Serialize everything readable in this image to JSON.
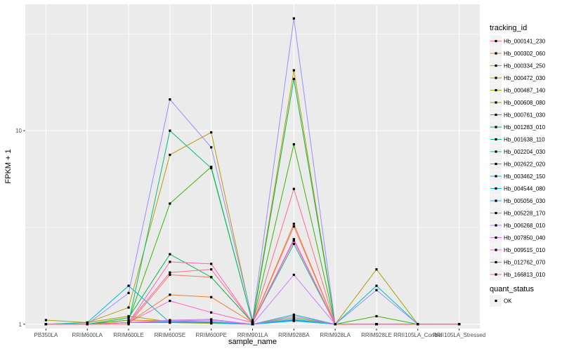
{
  "chart_data": {
    "type": "line",
    "title": "",
    "xlabel": "sample_name",
    "ylabel": "FPKM + 1",
    "y_scale": "log10",
    "ylim": [
      0.95,
      45
    ],
    "y_ticks": [
      {
        "value": 1,
        "label": "1"
      },
      {
        "value": 10,
        "label": "10"
      }
    ],
    "grid": true,
    "legend_position": "right",
    "categories": [
      "PB350LA",
      "RRIM600LA",
      "RRIM600LE",
      "RRIM600SE",
      "RRIM600PE",
      "RRIM901LA",
      "RRIM928BA",
      "RRIM928LA",
      "RRIM928LE",
      "RRII105LA_Control",
      "RRII105LA_Stressed"
    ],
    "legend_title": "tracking_id",
    "series": [
      {
        "name": "Hb_000141_230",
        "color": "#F8766D",
        "values": [
          1,
          1,
          1,
          1.8,
          1.75,
          1.02,
          3.2,
          1,
          1,
          1,
          1
        ]
      },
      {
        "name": "Hb_000302_060",
        "color": "#EA8331",
        "values": [
          1,
          1,
          1.02,
          1.42,
          1.38,
          1.02,
          3.3,
          1,
          1,
          1,
          1
        ]
      },
      {
        "name": "Hb_000334_250",
        "color": "#D89000",
        "values": [
          1,
          1,
          1.05,
          1.04,
          1.03,
          1,
          1.05,
          1,
          1,
          1,
          1
        ]
      },
      {
        "name": "Hb_000472_030",
        "color": "#C09B00",
        "values": [
          1,
          1.02,
          1.22,
          7.5,
          9.8,
          1.03,
          20.5,
          1,
          1,
          1,
          1
        ]
      },
      {
        "name": "Hb_000487_140",
        "color": "#A3A500",
        "values": [
          1.05,
          1.02,
          1.1,
          1.03,
          1.02,
          1,
          1.05,
          1,
          1.92,
          1,
          1
        ]
      },
      {
        "name": "Hb_000608_080",
        "color": "#7CAE00",
        "values": [
          1,
          1,
          1.02,
          1.02,
          1.01,
          1,
          1.08,
          1,
          1,
          1,
          1
        ]
      },
      {
        "name": "Hb_000761_030",
        "color": "#39B600",
        "values": [
          1,
          1,
          1.05,
          4.2,
          6.5,
          1.02,
          8.5,
          1,
          1.1,
          1,
          1
        ]
      },
      {
        "name": "Hb_001283_010",
        "color": "#00BB4E",
        "values": [
          1,
          1,
          1.08,
          2.3,
          1.75,
          1.02,
          18.5,
          1,
          1,
          1,
          1
        ]
      },
      {
        "name": "Hb_001638_110",
        "color": "#00BF7D",
        "values": [
          1,
          1,
          1.02,
          10,
          6.4,
          1.02,
          2.6,
          1,
          1,
          1,
          1
        ]
      },
      {
        "name": "Hb_002204_030",
        "color": "#00C1A3",
        "values": [
          1,
          1,
          1.02,
          1.02,
          1.02,
          1,
          1.05,
          1,
          1,
          1,
          1
        ]
      },
      {
        "name": "Hb_002622_020",
        "color": "#00BFC4",
        "values": [
          1,
          1.02,
          1.58,
          1.02,
          1.02,
          1,
          1.12,
          1,
          1.58,
          1,
          1
        ]
      },
      {
        "name": "Hb_003462_150",
        "color": "#00BAE0",
        "values": [
          1,
          1,
          1.02,
          1.02,
          1.02,
          1,
          1.05,
          1,
          1,
          1,
          1
        ]
      },
      {
        "name": "Hb_004544_080",
        "color": "#00B0F6",
        "values": [
          1,
          1,
          1.02,
          1.02,
          1.02,
          1,
          1.04,
          1,
          1,
          1,
          1
        ]
      },
      {
        "name": "Hb_005056_030",
        "color": "#35A2FF",
        "values": [
          1,
          1,
          1.02,
          1.03,
          1.03,
          1,
          1.06,
          1,
          1,
          1,
          1
        ]
      },
      {
        "name": "Hb_005228_170",
        "color": "#9590FF",
        "values": [
          1,
          1,
          1.45,
          14.5,
          8.2,
          1.05,
          38,
          1,
          1.5,
          1,
          1
        ]
      },
      {
        "name": "Hb_006268_010",
        "color": "#C77CFF",
        "values": [
          1,
          1,
          1.02,
          1.05,
          1.06,
          1,
          1.8,
          1,
          1,
          1,
          1
        ]
      },
      {
        "name": "Hb_007850_040",
        "color": "#E76BF3",
        "values": [
          1,
          1,
          1.02,
          1.04,
          1.05,
          1,
          1.1,
          1,
          1,
          1,
          1
        ]
      },
      {
        "name": "Hb_009515_010",
        "color": "#FA62DB",
        "values": [
          1,
          1,
          1.02,
          1.32,
          1.15,
          1.02,
          2.75,
          1,
          1,
          1,
          1
        ]
      },
      {
        "name": "Hb_012762_070",
        "color": "#FF62BC",
        "values": [
          1,
          1,
          1.02,
          2.1,
          2.05,
          1.02,
          2.7,
          1,
          1,
          1,
          1
        ]
      },
      {
        "name": "Hb_166813_010",
        "color": "#FF6C91",
        "values": [
          1,
          1,
          1.02,
          1.85,
          1.92,
          1.02,
          5.0,
          1,
          1,
          1,
          1
        ]
      }
    ],
    "shape_legend": {
      "title": "quant_status",
      "entries": [
        "OK"
      ]
    }
  }
}
